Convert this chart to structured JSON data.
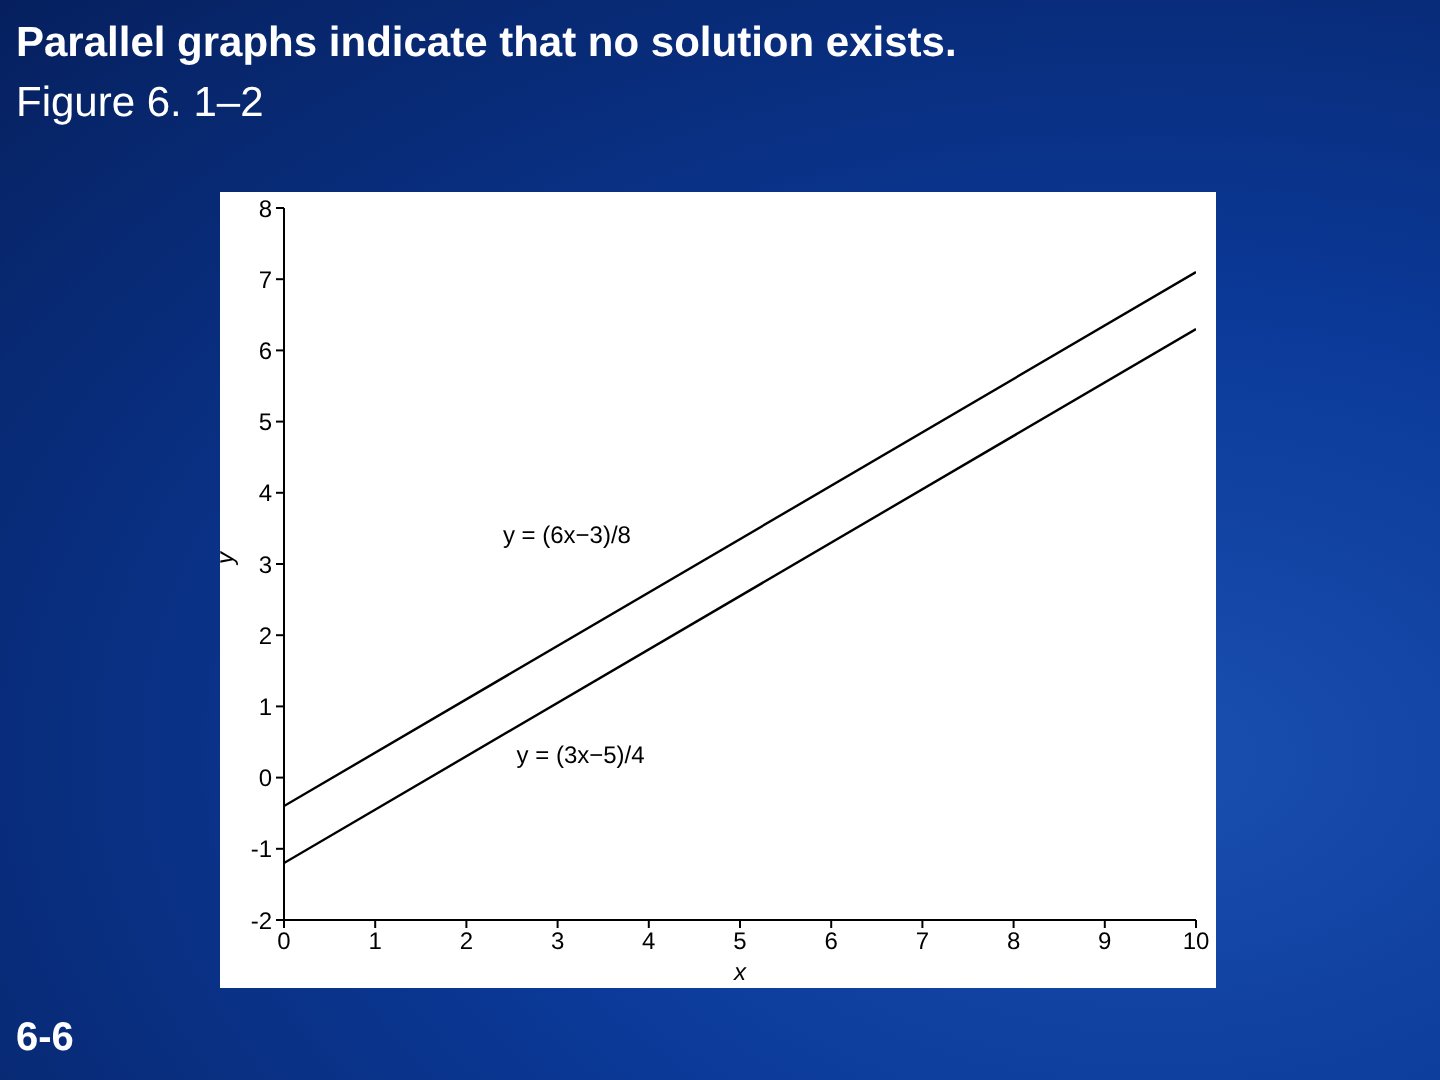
{
  "chart_data": {
    "type": "line",
    "title": "Parallel graphs indicate that no solution exists.",
    "subtitle": "Figure 6. 1–2",
    "xlabel": "x",
    "ylabel": "y",
    "x": [
      0,
      10
    ],
    "series": [
      {
        "name": "y = (6x−3)/8",
        "color": "#000000",
        "values": [
          -0.4,
          7.1
        ]
      },
      {
        "name": "y = (3x−5)/4",
        "color": "#000000",
        "values": [
          -1.2,
          6.3
        ]
      }
    ],
    "xlim": [
      0,
      10
    ],
    "xticks": [
      0,
      1,
      2,
      3,
      4,
      5,
      6,
      7,
      8,
      9,
      10
    ],
    "ylim": [
      -2,
      8
    ],
    "yticks": [
      -2,
      -1,
      0,
      1,
      2,
      3,
      4,
      5,
      6,
      7,
      8
    ],
    "grid": false,
    "legend": false,
    "marker": "none",
    "line_style": "solid",
    "annotations": [
      "6-6"
    ]
  }
}
